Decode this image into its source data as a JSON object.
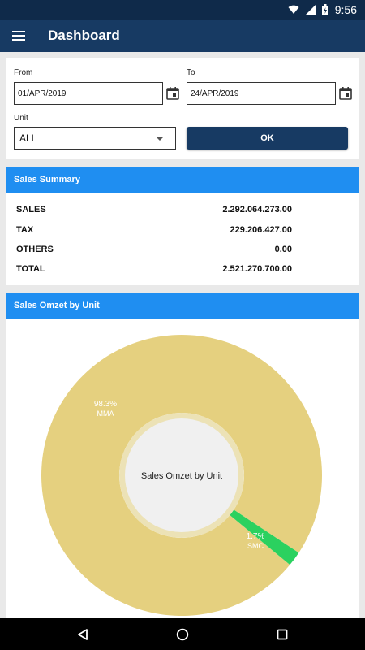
{
  "status_bar": {
    "time": "9:56"
  },
  "app_bar": {
    "title": "Dashboard",
    "menu_icon": "hamburger-menu-icon"
  },
  "filters": {
    "from_label": "From",
    "from_value": "01/APR/2019",
    "to_label": "To",
    "to_value": "24/APR/2019",
    "unit_label": "Unit",
    "unit_value": "ALL",
    "ok_label": "OK"
  },
  "sales_summary": {
    "header": "Sales Summary",
    "rows": [
      {
        "label": "SALES",
        "value": "2.292.064.273.00"
      },
      {
        "label": "TAX",
        "value": "229.206.427.00"
      },
      {
        "label": "OTHERS",
        "value": "0.00"
      },
      {
        "label": "TOTAL",
        "value": "2.521.270.700.00"
      }
    ]
  },
  "sales_omzet": {
    "header": "Sales Omzet by Unit",
    "center_text": "Sales Omzet by Unit",
    "colors": {
      "MMA": "#e5d07f",
      "SMC": "#2bd15f",
      "center": "#f0f0f0",
      "ring": "#ece2b6"
    }
  },
  "chart_data": {
    "type": "pie",
    "categories": [
      "MMA",
      "SMC"
    ],
    "values": [
      98.3,
      1.7
    ],
    "labels": [
      "98.3%",
      "1.7%"
    ],
    "title": "Sales Omzet by Unit"
  }
}
